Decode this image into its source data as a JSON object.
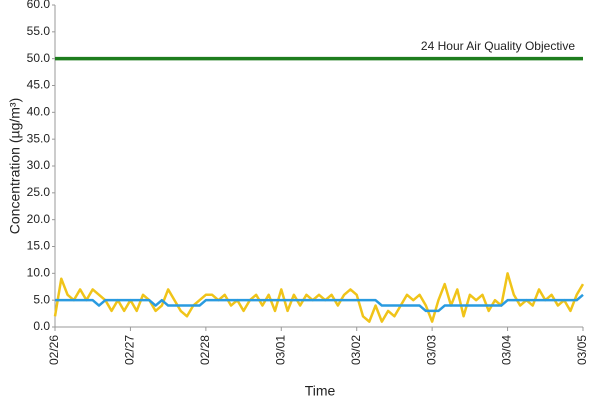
{
  "chart_data": {
    "type": "line",
    "ylabel": "Concentration (µg/m³)",
    "xlabel": "Time",
    "categories": [
      "02/26",
      null,
      null,
      null,
      null,
      null,
      null,
      null,
      null,
      null,
      null,
      null,
      "02/27",
      null,
      null,
      null,
      null,
      null,
      null,
      null,
      null,
      null,
      null,
      null,
      "02/28",
      null,
      null,
      null,
      null,
      null,
      null,
      null,
      null,
      null,
      null,
      null,
      "03/01",
      null,
      null,
      null,
      null,
      null,
      null,
      null,
      null,
      null,
      null,
      null,
      "03/02",
      null,
      null,
      null,
      null,
      null,
      null,
      null,
      null,
      null,
      null,
      null,
      "03/03",
      null,
      null,
      null,
      null,
      null,
      null,
      null,
      null,
      null,
      null,
      null,
      "03/04",
      null,
      null,
      null,
      null,
      null,
      null,
      null,
      null,
      null,
      null,
      null,
      "03/05"
    ],
    "series": [
      {
        "color": "#f0c419",
        "values": [
          2,
          9,
          6,
          5,
          7,
          5,
          7,
          6,
          5,
          3,
          5,
          3,
          5,
          3,
          6,
          5,
          3,
          4,
          7,
          5,
          3,
          2,
          4,
          5,
          6,
          6,
          5,
          6,
          4,
          5,
          3,
          5,
          6,
          4,
          6,
          3,
          7,
          3,
          6,
          4,
          6,
          5,
          6,
          5,
          6,
          4,
          6,
          7,
          6,
          2,
          1,
          4,
          1,
          3,
          2,
          4,
          6,
          5,
          6,
          4,
          1,
          5,
          8,
          4,
          7,
          2,
          6,
          5,
          6,
          3,
          5,
          4,
          10,
          6,
          4,
          5,
          4,
          7,
          5,
          6,
          4,
          5,
          3,
          6,
          8
        ]
      },
      {
        "color": "#2a9be0",
        "values": [
          5,
          5,
          5,
          5,
          5,
          5,
          5,
          4,
          5,
          5,
          5,
          5,
          5,
          5,
          5,
          5,
          4,
          5,
          4,
          4,
          4,
          4,
          4,
          4,
          5,
          5,
          5,
          5,
          5,
          5,
          5,
          5,
          5,
          5,
          5,
          5,
          5,
          5,
          5,
          5,
          5,
          5,
          5,
          5,
          5,
          5,
          5,
          5,
          5,
          5,
          5,
          5,
          4,
          4,
          4,
          4,
          4,
          4,
          4,
          3,
          3,
          3,
          4,
          4,
          4,
          4,
          4,
          4,
          4,
          4,
          4,
          4,
          5,
          5,
          5,
          5,
          5,
          5,
          5,
          5,
          5,
          5,
          5,
          5,
          6
        ]
      },
      {
        "name": "24 Hour Air Quality Objective",
        "color": "#1e7d1e",
        "values": [
          50,
          50,
          50,
          50,
          50,
          50,
          50,
          50,
          50,
          50,
          50,
          50,
          50,
          50,
          50,
          50,
          50,
          50,
          50,
          50,
          50,
          50,
          50,
          50,
          50,
          50,
          50,
          50,
          50,
          50,
          50,
          50,
          50,
          50,
          50,
          50,
          50,
          50,
          50,
          50,
          50,
          50,
          50,
          50,
          50,
          50,
          50,
          50,
          50,
          50,
          50,
          50,
          50,
          50,
          50,
          50,
          50,
          50,
          50,
          50,
          50,
          50,
          50,
          50,
          50,
          50,
          50,
          50,
          50,
          50,
          50,
          50,
          50,
          50,
          50,
          50,
          50,
          50,
          50,
          50,
          50,
          50,
          50,
          50,
          50
        ]
      }
    ],
    "ylim": [
      0,
      60
    ],
    "yticks": [
      {
        "value": 0,
        "label": "0.0"
      },
      {
        "value": 5,
        "label": "5.0"
      },
      {
        "value": 10,
        "label": "10.0"
      },
      {
        "value": 15,
        "label": "15.0"
      },
      {
        "value": 20,
        "label": "20.0"
      },
      {
        "value": 25,
        "label": "25.0"
      },
      {
        "value": 30,
        "label": "30.0"
      },
      {
        "value": 35,
        "label": "35.0"
      },
      {
        "value": 40,
        "label": "40.0"
      },
      {
        "value": 45,
        "label": "45.0"
      },
      {
        "value": 50,
        "label": "50.0"
      },
      {
        "value": 55,
        "label": "55.0"
      },
      {
        "value": 60,
        "label": "60.0"
      }
    ],
    "grid": false
  }
}
